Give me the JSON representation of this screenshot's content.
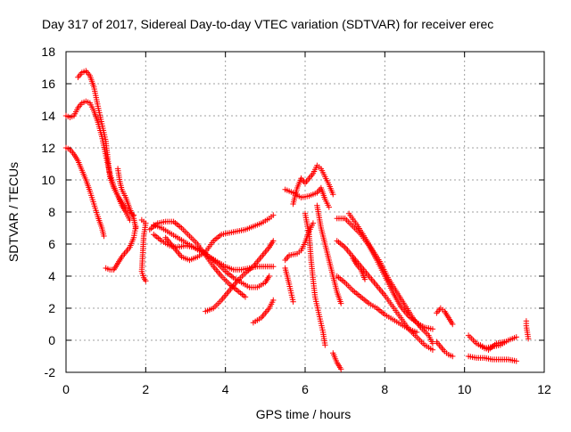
{
  "chart_data": {
    "type": "scatter",
    "title": "Day 317 of 2017, Sidereal Day-to-day VTEC variation (SDTVAR) for receiver erec",
    "xlabel": "GPS time / hours",
    "ylabel": "SDTVAR / TECUs",
    "xlim": [
      0,
      12
    ],
    "ylim": [
      -2,
      18
    ],
    "xticks": [
      "0",
      "2",
      "4",
      "6",
      "8",
      "10",
      "12"
    ],
    "yticks": [
      "-2",
      "0",
      "2",
      "4",
      "6",
      "8",
      "10",
      "12",
      "14",
      "16",
      "18"
    ],
    "grid": true,
    "marker": "+",
    "color": "#ff0000",
    "series": [
      {
        "name": "s1",
        "points": [
          [
            0.0,
            14.0
          ],
          [
            0.1,
            13.9
          ],
          [
            0.2,
            14.0
          ],
          [
            0.3,
            14.5
          ],
          [
            0.4,
            14.8
          ],
          [
            0.5,
            14.9
          ],
          [
            0.6,
            14.8
          ],
          [
            0.7,
            14.3
          ],
          [
            0.8,
            13.6
          ],
          [
            0.9,
            12.7
          ],
          [
            1.0,
            11.5
          ],
          [
            1.1,
            10.4
          ],
          [
            1.2,
            9.6
          ],
          [
            1.3,
            9.0
          ],
          [
            1.4,
            8.6
          ],
          [
            1.5,
            8.2
          ],
          [
            1.6,
            8.0
          ],
          [
            1.7,
            7.8
          ]
        ]
      },
      {
        "name": "s2",
        "points": [
          [
            0.3,
            16.4
          ],
          [
            0.4,
            16.7
          ],
          [
            0.5,
            16.8
          ],
          [
            0.6,
            16.5
          ],
          [
            0.7,
            15.8
          ],
          [
            0.8,
            14.6
          ],
          [
            0.9,
            13.5
          ],
          [
            1.0,
            12.4
          ],
          [
            1.05,
            11.3
          ],
          [
            1.1,
            10.2
          ],
          [
            1.2,
            9.5
          ],
          [
            1.3,
            9.0
          ],
          [
            1.4,
            8.4
          ],
          [
            1.5,
            8.0
          ],
          [
            1.6,
            7.5
          ]
        ]
      },
      {
        "name": "s3",
        "points": [
          [
            0.0,
            12.0
          ],
          [
            0.1,
            11.9
          ],
          [
            0.2,
            11.6
          ],
          [
            0.3,
            11.2
          ],
          [
            0.4,
            10.6
          ],
          [
            0.5,
            10.0
          ],
          [
            0.6,
            9.3
          ],
          [
            0.7,
            8.5
          ],
          [
            0.8,
            7.7
          ],
          [
            0.9,
            7.0
          ],
          [
            0.95,
            6.5
          ]
        ]
      },
      {
        "name": "s4",
        "points": [
          [
            1.3,
            10.7
          ],
          [
            1.35,
            9.9
          ],
          [
            1.4,
            9.4
          ],
          [
            1.5,
            8.9
          ],
          [
            1.6,
            8.2
          ],
          [
            1.7,
            7.6
          ],
          [
            1.75,
            7.0
          ]
        ]
      },
      {
        "name": "s5",
        "points": [
          [
            1.0,
            4.5
          ],
          [
            1.1,
            4.4
          ],
          [
            1.2,
            4.4
          ],
          [
            1.3,
            4.8
          ],
          [
            1.4,
            5.2
          ],
          [
            1.5,
            5.5
          ],
          [
            1.6,
            5.8
          ],
          [
            1.7,
            6.4
          ],
          [
            1.75,
            7.1
          ]
        ]
      },
      {
        "name": "s6",
        "points": [
          [
            1.9,
            7.5
          ],
          [
            2.0,
            7.3
          ],
          [
            1.95,
            6.5
          ],
          [
            1.9,
            4.3
          ],
          [
            1.95,
            3.9
          ],
          [
            2.0,
            3.7
          ]
        ]
      },
      {
        "name": "s7",
        "points": [
          [
            2.2,
            7.2
          ],
          [
            2.4,
            7.0
          ],
          [
            2.6,
            6.7
          ],
          [
            2.8,
            6.4
          ],
          [
            3.0,
            6.1
          ],
          [
            3.2,
            5.8
          ],
          [
            3.4,
            5.5
          ],
          [
            3.6,
            5.2
          ],
          [
            3.8,
            4.8
          ],
          [
            4.0,
            4.3
          ],
          [
            4.2,
            3.9
          ],
          [
            4.4,
            3.6
          ],
          [
            4.6,
            3.3
          ],
          [
            4.8,
            3.3
          ],
          [
            5.0,
            3.6
          ],
          [
            5.1,
            4.0
          ]
        ]
      },
      {
        "name": "s8",
        "points": [
          [
            2.2,
            6.6
          ],
          [
            2.4,
            6.2
          ],
          [
            2.6,
            5.9
          ],
          [
            2.8,
            5.8
          ],
          [
            3.0,
            5.9
          ],
          [
            3.2,
            5.8
          ],
          [
            3.4,
            5.6
          ],
          [
            3.6,
            5.2
          ],
          [
            3.8,
            4.9
          ],
          [
            4.0,
            4.6
          ],
          [
            4.2,
            4.4
          ],
          [
            4.4,
            4.4
          ],
          [
            4.6,
            4.5
          ],
          [
            4.8,
            4.6
          ],
          [
            5.0,
            4.6
          ],
          [
            5.2,
            4.6
          ]
        ]
      },
      {
        "name": "s9",
        "points": [
          [
            2.1,
            6.9
          ],
          [
            2.3,
            7.3
          ],
          [
            2.5,
            7.4
          ],
          [
            2.7,
            7.4
          ],
          [
            2.9,
            7.0
          ],
          [
            3.1,
            6.5
          ],
          [
            3.3,
            6.0
          ],
          [
            3.5,
            5.3
          ],
          [
            3.7,
            4.6
          ],
          [
            3.9,
            4.0
          ],
          [
            4.1,
            3.5
          ],
          [
            4.3,
            3.1
          ],
          [
            4.5,
            2.7
          ]
        ]
      },
      {
        "name": "s10",
        "points": [
          [
            2.5,
            6.4
          ],
          [
            2.7,
            5.8
          ],
          [
            2.9,
            5.2
          ],
          [
            3.1,
            5.0
          ],
          [
            3.3,
            5.2
          ],
          [
            3.5,
            5.5
          ],
          [
            3.7,
            6.2
          ],
          [
            3.9,
            6.6
          ],
          [
            4.1,
            6.7
          ],
          [
            4.3,
            6.8
          ],
          [
            4.5,
            6.9
          ],
          [
            4.7,
            7.1
          ],
          [
            4.9,
            7.3
          ],
          [
            5.1,
            7.6
          ],
          [
            5.2,
            7.8
          ]
        ]
      },
      {
        "name": "s11",
        "points": [
          [
            3.5,
            1.8
          ],
          [
            3.7,
            2.0
          ],
          [
            3.9,
            2.5
          ],
          [
            4.1,
            3.1
          ],
          [
            4.3,
            3.7
          ],
          [
            4.5,
            4.2
          ],
          [
            4.7,
            4.6
          ],
          [
            4.9,
            5.2
          ],
          [
            5.1,
            5.8
          ],
          [
            5.2,
            6.2
          ]
        ]
      },
      {
        "name": "s12",
        "points": [
          [
            4.7,
            1.1
          ],
          [
            4.9,
            1.4
          ],
          [
            5.1,
            2.0
          ],
          [
            5.2,
            2.5
          ]
        ]
      },
      {
        "name": "s13",
        "points": [
          [
            5.5,
            9.4
          ],
          [
            5.7,
            9.2
          ],
          [
            5.9,
            8.9
          ],
          [
            6.1,
            9.0
          ],
          [
            6.3,
            9.2
          ],
          [
            6.4,
            9.5
          ],
          [
            6.5,
            8.8
          ],
          [
            6.6,
            8.3
          ]
        ]
      },
      {
        "name": "s14",
        "points": [
          [
            5.7,
            8.5
          ],
          [
            5.8,
            9.5
          ],
          [
            5.9,
            10.1
          ],
          [
            6.0,
            9.8
          ],
          [
            6.2,
            10.4
          ],
          [
            6.3,
            10.9
          ],
          [
            6.4,
            10.7
          ],
          [
            6.5,
            10.2
          ],
          [
            6.6,
            9.7
          ],
          [
            6.7,
            9.1
          ]
        ]
      },
      {
        "name": "s15",
        "points": [
          [
            5.5,
            5.0
          ],
          [
            5.6,
            5.3
          ],
          [
            5.8,
            5.4
          ],
          [
            5.9,
            5.6
          ],
          [
            6.0,
            6.1
          ],
          [
            6.1,
            6.8
          ],
          [
            6.2,
            7.3
          ]
        ]
      },
      {
        "name": "s16",
        "points": [
          [
            5.5,
            4.5
          ],
          [
            5.6,
            3.5
          ],
          [
            5.7,
            2.4
          ]
        ]
      },
      {
        "name": "s17",
        "points": [
          [
            6.0,
            7.9
          ],
          [
            6.1,
            6.6
          ],
          [
            6.15,
            5.0
          ],
          [
            6.2,
            3.8
          ],
          [
            6.25,
            2.7
          ],
          [
            6.35,
            1.6
          ],
          [
            6.45,
            0.5
          ],
          [
            6.5,
            -0.3
          ]
        ]
      },
      {
        "name": "s18",
        "points": [
          [
            6.3,
            8.4
          ],
          [
            6.4,
            7.0
          ],
          [
            6.5,
            6.0
          ],
          [
            6.6,
            5.0
          ],
          [
            6.7,
            4.0
          ],
          [
            6.8,
            3.0
          ],
          [
            6.9,
            2.3
          ]
        ]
      },
      {
        "name": "s19",
        "points": [
          [
            6.7,
            -0.8
          ],
          [
            6.8,
            -1.4
          ],
          [
            6.9,
            -1.8
          ]
        ]
      },
      {
        "name": "s20",
        "points": [
          [
            6.8,
            7.6
          ],
          [
            7.0,
            7.6
          ],
          [
            7.2,
            7.1
          ],
          [
            7.4,
            6.6
          ],
          [
            7.6,
            5.9
          ],
          [
            7.8,
            5.0
          ],
          [
            8.0,
            4.0
          ],
          [
            8.2,
            3.0
          ],
          [
            8.4,
            2.1
          ],
          [
            8.6,
            1.5
          ],
          [
            8.8,
            1.1
          ],
          [
            9.0,
            0.8
          ],
          [
            9.2,
            0.7
          ]
        ]
      },
      {
        "name": "s21",
        "points": [
          [
            6.8,
            6.2
          ],
          [
            7.0,
            5.8
          ],
          [
            7.2,
            5.2
          ],
          [
            7.4,
            4.6
          ],
          [
            7.6,
            4.0
          ],
          [
            7.8,
            3.4
          ],
          [
            8.0,
            2.8
          ],
          [
            8.2,
            2.1
          ],
          [
            8.4,
            1.4
          ],
          [
            8.6,
            0.7
          ],
          [
            8.8,
            0.2
          ],
          [
            9.0,
            -0.3
          ],
          [
            9.2,
            -0.6
          ]
        ]
      },
      {
        "name": "s22",
        "points": [
          [
            6.8,
            4.0
          ],
          [
            7.0,
            3.6
          ],
          [
            7.2,
            3.1
          ],
          [
            7.4,
            2.7
          ],
          [
            7.6,
            2.3
          ],
          [
            7.8,
            2.0
          ],
          [
            8.0,
            1.6
          ],
          [
            8.2,
            1.3
          ],
          [
            8.4,
            1.0
          ],
          [
            8.6,
            0.7
          ],
          [
            8.8,
            0.5
          ]
        ]
      },
      {
        "name": "s23",
        "points": [
          [
            7.1,
            7.9
          ],
          [
            7.3,
            7.2
          ],
          [
            7.5,
            6.4
          ],
          [
            7.7,
            5.6
          ],
          [
            7.9,
            4.8
          ],
          [
            8.1,
            3.8
          ],
          [
            8.3,
            3.0
          ],
          [
            8.5,
            2.2
          ],
          [
            8.7,
            1.4
          ],
          [
            8.9,
            0.8
          ],
          [
            9.1,
            0.3
          ],
          [
            9.2,
            -0.2
          ]
        ]
      },
      {
        "name": "s24",
        "points": [
          [
            7.2,
            5.1
          ],
          [
            7.3,
            4.7
          ],
          [
            7.4,
            4.4
          ],
          [
            7.5,
            3.8
          ]
        ]
      },
      {
        "name": "s25",
        "points": [
          [
            9.3,
            1.7
          ],
          [
            9.4,
            2.0
          ],
          [
            9.5,
            1.8
          ],
          [
            9.6,
            1.4
          ],
          [
            9.7,
            1.0
          ]
        ]
      },
      {
        "name": "s26",
        "points": [
          [
            9.3,
            -0.1
          ],
          [
            9.4,
            -0.4
          ],
          [
            9.5,
            -0.7
          ],
          [
            9.6,
            -0.9
          ],
          [
            9.7,
            -1.0
          ]
        ]
      },
      {
        "name": "s27",
        "points": [
          [
            10.1,
            0.3
          ],
          [
            10.3,
            -0.2
          ],
          [
            10.5,
            -0.5
          ],
          [
            10.7,
            -0.4
          ],
          [
            10.9,
            -0.3
          ],
          [
            11.1,
            0.0
          ],
          [
            11.3,
            0.2
          ]
        ]
      },
      {
        "name": "s28",
        "points": [
          [
            10.1,
            -1.0
          ],
          [
            10.3,
            -1.1
          ],
          [
            10.5,
            -1.1
          ],
          [
            10.7,
            -1.2
          ],
          [
            10.9,
            -1.2
          ],
          [
            11.1,
            -1.2
          ],
          [
            11.3,
            -1.3
          ]
        ]
      },
      {
        "name": "s29",
        "points": [
          [
            10.4,
            -0.3
          ],
          [
            10.6,
            -0.6
          ],
          [
            10.8,
            -0.2
          ],
          [
            11.0,
            -0.1
          ]
        ]
      },
      {
        "name": "s30",
        "points": [
          [
            11.55,
            1.2
          ],
          [
            11.55,
            0.9
          ],
          [
            11.6,
            0.1
          ]
        ]
      }
    ]
  }
}
